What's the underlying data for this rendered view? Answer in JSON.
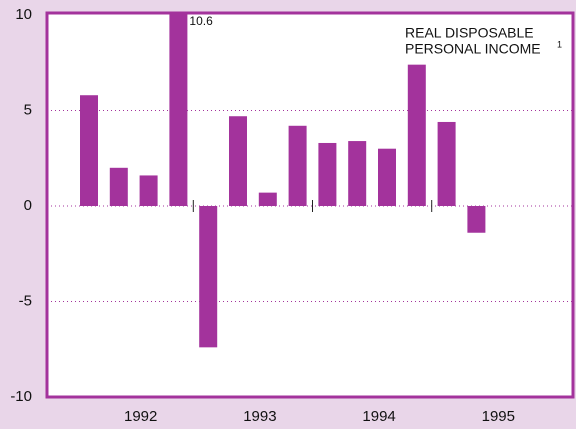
{
  "chart_data": {
    "type": "bar",
    "annotation": [
      "REAL DISPOSABLE",
      "PERSONAL INCOME"
    ],
    "annotation_note": "1",
    "categories": [
      null,
      null,
      null,
      null,
      null,
      null,
      null,
      null,
      null,
      null,
      null,
      null,
      null,
      null
    ],
    "year_labels": [
      "1992",
      "1993",
      "1994",
      "1995"
    ],
    "values": [
      5.8,
      2.0,
      1.6,
      10.6,
      -7.4,
      4.7,
      0.7,
      4.2,
      3.3,
      3.4,
      3.0,
      7.4,
      4.4,
      -1.4
    ],
    "labeled_value_index": 3,
    "color": "#a3339c",
    "ylim": [
      -10,
      10
    ],
    "yticks": [
      10,
      5,
      0,
      -5,
      -10
    ],
    "grid": true
  }
}
